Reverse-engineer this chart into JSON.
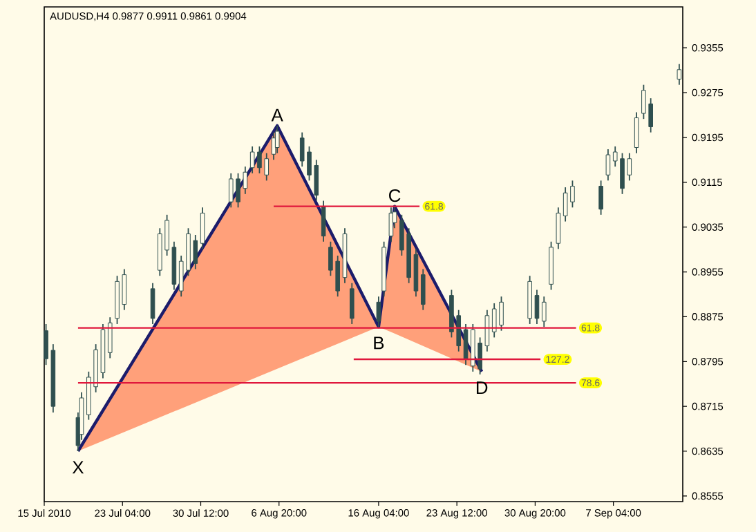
{
  "chart_data": {
    "type": "candlestick",
    "title": "AUDUSD,H4  0.9877 0.9911 0.9861 0.9904",
    "xlim": [
      "2010-07-15T20:00",
      "2010-09-13T16:00"
    ],
    "ylim": [
      0.8545,
      0.9428
    ],
    "xticks": [
      {
        "value": "2010-07-15T20:00",
        "label": "15 Jul 2010"
      },
      {
        "value": "2010-07-23T04:00",
        "label": "23 Jul 04:00"
      },
      {
        "value": "2010-07-30T12:00",
        "label": "30 Jul 12:00"
      },
      {
        "value": "2010-08-06T20:00",
        "label": "6 Aug 20:00"
      },
      {
        "value": "2010-08-16T04:00",
        "label": "16 Aug 04:00"
      },
      {
        "value": "2010-08-23T12:00",
        "label": "23 Aug 12:00"
      },
      {
        "value": "2010-08-30T20:00",
        "label": "30 Aug 20:00"
      },
      {
        "value": "2010-09-07T04:00",
        "label": "7 Sep 04:00"
      }
    ],
    "yticks": [
      0.8555,
      0.8635,
      0.8715,
      0.8795,
      0.8875,
      0.8955,
      0.9035,
      0.9115,
      0.9195,
      0.9275,
      0.9355
    ],
    "series": [
      {
        "color": "#2f4f4f",
        "x": [
          "2010-07-16T00:00",
          "2010-07-16T16:00",
          "2010-07-19T00:00",
          "2010-07-19T08:00",
          "2010-07-20T00:00",
          "2010-07-20T16:00",
          "2010-07-21T08:00",
          "2010-07-22T00:00",
          "2010-07-22T16:00",
          "2010-07-23T08:00",
          "2010-07-26T00:00",
          "2010-07-26T16:00",
          "2010-07-27T08:00",
          "2010-07-28T00:00",
          "2010-07-28T16:00",
          "2010-07-29T08:00",
          "2010-07-30T00:00",
          "2010-07-30T16:00",
          "2010-08-02T08:00",
          "2010-08-03T00:00",
          "2010-08-03T16:00",
          "2010-08-04T08:00",
          "2010-08-05T00:00",
          "2010-08-05T16:00",
          "2010-08-06T08:00",
          "2010-08-06T16:00",
          "2010-08-09T00:00",
          "2010-08-09T16:00",
          "2010-08-10T08:00",
          "2010-08-11T00:00",
          "2010-08-11T16:00",
          "2010-08-12T08:00",
          "2010-08-13T00:00",
          "2010-08-13T16:00",
          "2010-08-16T04:00",
          "2010-08-16T16:00",
          "2010-08-17T08:00",
          "2010-08-17T16:00",
          "2010-08-18T08:00",
          "2010-08-19T00:00",
          "2010-08-19T16:00",
          "2010-08-20T08:00",
          "2010-08-23T00:00",
          "2010-08-23T16:00",
          "2010-08-24T08:00",
          "2010-08-25T00:00",
          "2010-08-25T16:00",
          "2010-08-26T08:00",
          "2010-08-27T00:00",
          "2010-08-27T16:00",
          "2010-08-30T08:00",
          "2010-08-31T00:00",
          "2010-08-31T16:00",
          "2010-09-01T08:00",
          "2010-09-02T00:00",
          "2010-09-02T16:00",
          "2010-09-03T08:00",
          "2010-09-06T00:00",
          "2010-09-06T16:00",
          "2010-09-07T08:00",
          "2010-09-08T00:00",
          "2010-09-08T16:00",
          "2010-09-09T08:00",
          "2010-09-10T00:00",
          "2010-09-10T16:00",
          "2010-09-13T08:00"
        ],
        "ohlc": [
          [
            0.885,
            0.8862,
            0.8789,
            0.88
          ],
          [
            0.8815,
            0.8826,
            0.8704,
            0.8715
          ],
          [
            0.8695,
            0.8704,
            0.8635,
            0.8645
          ],
          [
            0.8665,
            0.874,
            0.8655,
            0.873
          ],
          [
            0.87,
            0.8777,
            0.8691,
            0.8767
          ],
          [
            0.875,
            0.8826,
            0.874,
            0.8816
          ],
          [
            0.8775,
            0.8862,
            0.8765,
            0.8852
          ],
          [
            0.8811,
            0.8874,
            0.8801,
            0.8864
          ],
          [
            0.8872,
            0.8948,
            0.8862,
            0.8938
          ],
          [
            0.8897,
            0.896,
            0.8887,
            0.895
          ],
          [
            0.8925,
            0.8935,
            0.8862,
            0.8872
          ],
          [
            0.8958,
            0.9033,
            0.8948,
            0.9023
          ],
          [
            0.8994,
            0.9057,
            0.8984,
            0.9047
          ],
          [
            0.8999,
            0.9009,
            0.8923,
            0.8933
          ],
          [
            0.8921,
            0.8984,
            0.8911,
            0.8974
          ],
          [
            0.8958,
            0.9033,
            0.8948,
            0.9023
          ],
          [
            0.9011,
            0.9021,
            0.896,
            0.897
          ],
          [
            0.9006,
            0.907,
            0.8996,
            0.906
          ],
          [
            0.908,
            0.9131,
            0.907,
            0.9121
          ],
          [
            0.9121,
            0.9131,
            0.907,
            0.908
          ],
          [
            0.9104,
            0.9143,
            0.9094,
            0.9133
          ],
          [
            0.9141,
            0.9179,
            0.9131,
            0.9169
          ],
          [
            0.9169,
            0.9179,
            0.9131,
            0.9141
          ],
          [
            0.9128,
            0.9167,
            0.9118,
            0.9157
          ],
          [
            0.9165,
            0.9204,
            0.9155,
            0.9194
          ],
          [
            0.9177,
            0.9216,
            0.9167,
            0.9206
          ],
          [
            0.9194,
            0.9204,
            0.9143,
            0.9153
          ],
          [
            0.9169,
            0.9179,
            0.9118,
            0.9128
          ],
          [
            0.9145,
            0.9155,
            0.9082,
            0.9092
          ],
          [
            0.9072,
            0.9082,
            0.9009,
            0.9019
          ],
          [
            0.8999,
            0.9009,
            0.8948,
            0.8958
          ],
          [
            0.8974,
            0.8984,
            0.8911,
            0.8921
          ],
          [
            0.8945,
            0.9033,
            0.8935,
            0.9023
          ],
          [
            0.8925,
            0.8935,
            0.8862,
            0.8872
          ],
          [
            0.8901,
            0.8911,
            0.8857,
            0.8867
          ],
          [
            0.8921,
            0.9009,
            0.8911,
            0.8999
          ],
          [
            0.9019,
            0.907,
            0.9009,
            0.906
          ],
          [
            0.9043,
            0.9072,
            0.9033,
            0.9062
          ],
          [
            0.9047,
            0.9057,
            0.8984,
            0.8994
          ],
          [
            0.9023,
            0.9033,
            0.8935,
            0.8945
          ],
          [
            0.8986,
            0.8996,
            0.8911,
            0.8921
          ],
          [
            0.895,
            0.896,
            0.8887,
            0.8897
          ],
          [
            0.8913,
            0.8923,
            0.8838,
            0.8848
          ],
          [
            0.8877,
            0.8887,
            0.8813,
            0.8823
          ],
          [
            0.8852,
            0.8862,
            0.8789,
            0.8799
          ],
          [
            0.8787,
            0.8862,
            0.8777,
            0.8852
          ],
          [
            0.8828,
            0.8838,
            0.8772,
            0.8782
          ],
          [
            0.8823,
            0.8887,
            0.8813,
            0.8877
          ],
          [
            0.8848,
            0.8899,
            0.8838,
            0.8889
          ],
          [
            0.886,
            0.8911,
            0.885,
            0.8901
          ],
          [
            0.8872,
            0.8948,
            0.8862,
            0.8938
          ],
          [
            0.8913,
            0.8923,
            0.8862,
            0.8872
          ],
          [
            0.8867,
            0.8911,
            0.8857,
            0.8901
          ],
          [
            0.8933,
            0.9009,
            0.8923,
            0.8999
          ],
          [
            0.9006,
            0.907,
            0.8996,
            0.906
          ],
          [
            0.9055,
            0.9106,
            0.9045,
            0.9096
          ],
          [
            0.908,
            0.9118,
            0.907,
            0.9108
          ],
          [
            0.9108,
            0.9118,
            0.9057,
            0.9067
          ],
          [
            0.9128,
            0.9174,
            0.9118,
            0.9164
          ],
          [
            0.9153,
            0.9179,
            0.9143,
            0.9169
          ],
          [
            0.9157,
            0.9167,
            0.9094,
            0.9104
          ],
          [
            0.9128,
            0.9167,
            0.9118,
            0.9157
          ],
          [
            0.9177,
            0.924,
            0.9167,
            0.923
          ],
          [
            0.9238,
            0.9289,
            0.9228,
            0.9279
          ],
          [
            0.9255,
            0.9265,
            0.9204,
            0.9214
          ],
          [
            0.9299,
            0.9326,
            0.9289,
            0.9316
          ]
        ]
      },
      {
        "type": "line",
        "color": "#1c1c6b",
        "x": [
          "2010-07-19T00:00",
          "2010-08-06T16:00",
          "2010-08-16T04:00",
          "2010-08-17T16:00",
          "2010-08-25T20:00"
        ],
        "values": [
          0.8635,
          0.9216,
          0.8857,
          0.9072,
          0.8777
        ],
        "lower": [
          0.8635,
          0.8782,
          0.8857,
          0.8845,
          0.8777
        ],
        "upper": [
          0.8635,
          0.9216,
          0.8857,
          0.9072,
          0.8777
        ]
      },
      {
        "type": "line",
        "color": "#e0173c",
        "x": [
          "2010-08-06T08:00",
          "2010-08-20T00:00"
        ],
        "values": [
          0.9072,
          0.9072
        ]
      },
      {
        "type": "line",
        "color": "#e0173c",
        "x": [
          "2010-07-19T00:00",
          "2010-09-03T16:00"
        ],
        "values": [
          0.8855,
          0.8855
        ]
      },
      {
        "type": "line",
        "color": "#e0173c",
        "x": [
          "2010-08-13T20:00",
          "2010-08-31T08:00"
        ],
        "values": [
          0.8799,
          0.8799
        ]
      },
      {
        "type": "line",
        "color": "#e0173c",
        "x": [
          "2010-07-19T00:00",
          "2010-09-03T16:00"
        ],
        "values": [
          0.8757,
          0.8757
        ]
      }
    ],
    "annotations": [
      {
        "text": "X",
        "x": "2010-07-19T00:00",
        "y": 0.8635
      },
      {
        "text": "A",
        "x": "2010-08-06T16:00",
        "y": 0.9216
      },
      {
        "text": "B",
        "x": "2010-08-16T04:00",
        "y": 0.8857
      },
      {
        "text": "C",
        "x": "2010-08-17T16:00",
        "y": 0.9072
      },
      {
        "text": "D",
        "x": "2010-08-25T20:00",
        "y": 0.8777
      },
      {
        "text": "61.8",
        "x": "2010-08-20T00:00",
        "y": 0.9072
      },
      {
        "text": "61.8",
        "x": "2010-09-03T16:00",
        "y": 0.8855
      },
      {
        "text": "127.2",
        "x": "2010-08-31T08:00",
        "y": 0.8799
      },
      {
        "text": "78.6",
        "x": "2010-09-03T16:00",
        "y": 0.8757
      }
    ]
  }
}
